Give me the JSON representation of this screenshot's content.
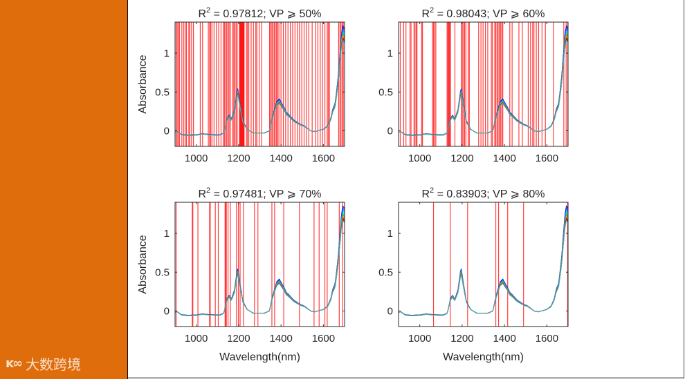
{
  "logo": {
    "mark": "ᴋ∞",
    "text": "大数跨境"
  },
  "colors": {
    "sidebar": "#e06d0c",
    "selection": "#ff0000",
    "series": [
      "#0000c8",
      "#0030ff",
      "#0080ff",
      "#00c0e0",
      "#20b0a0",
      "#40a040",
      "#c0c000",
      "#ff9000",
      "#ff3000",
      "#c00000",
      "#505050",
      "#40b8c8"
    ]
  },
  "chart_data": [
    {
      "type": "line",
      "title": "R² = 0.97812; VP ⩾ 50%",
      "title_parts": {
        "r": "R",
        "sup": "2",
        "rest": " = 0.97812; VP ⩾ 50%"
      },
      "xlabel": "",
      "ylabel": "Absorbance",
      "xlim": [
        900,
        1700
      ],
      "ylim": [
        -0.2,
        1.4
      ],
      "xticks": [
        "1000",
        "1200",
        "1400",
        "1600"
      ],
      "yticks": [
        "0",
        "0.5",
        "1"
      ],
      "selected_wavelengths": [
        905,
        910,
        916,
        921,
        932,
        941,
        948,
        954,
        965,
        970,
        978,
        987,
        1019,
        1030,
        1057,
        1063,
        1068,
        1074,
        1084,
        1095,
        1106,
        1117,
        1128,
        1133,
        1139,
        1144,
        1150,
        1155,
        1161,
        1172,
        1177,
        1182,
        1188,
        1193,
        1204,
        1206,
        1208,
        1210,
        1212,
        1214,
        1216,
        1218,
        1220,
        1222,
        1224,
        1226,
        1237,
        1242,
        1248,
        1259,
        1270,
        1281,
        1286,
        1297,
        1308,
        1346,
        1351,
        1357,
        1362,
        1368,
        1373,
        1379,
        1384,
        1390,
        1400,
        1411,
        1422,
        1433,
        1444,
        1455,
        1466,
        1477,
        1487,
        1498,
        1509,
        1520,
        1531,
        1547,
        1563,
        1574,
        1585,
        1596,
        1607,
        1618,
        1623,
        1629,
        1672,
        1678,
        1683,
        1689,
        1694
      ]
    },
    {
      "type": "line",
      "title": "R² = 0.98043; VP ⩾ 60%",
      "title_parts": {
        "r": "R",
        "sup": "2",
        "rest": " = 0.98043; VP ⩾ 60%"
      },
      "xlabel": "",
      "ylabel": "",
      "xlim": [
        900,
        1700
      ],
      "ylim": [
        -0.2,
        1.4
      ],
      "xticks": [
        "1000",
        "1200",
        "1400",
        "1600"
      ],
      "yticks": [
        "0",
        "0.5",
        "1"
      ],
      "selected_wavelengths": [
        908,
        924,
        935,
        954,
        959,
        973,
        978,
        984,
        987,
        1009,
        1013,
        1060,
        1065,
        1071,
        1076,
        1129,
        1133,
        1136,
        1139,
        1142,
        1145,
        1166,
        1196,
        1201,
        1207,
        1212,
        1218,
        1229,
        1234,
        1278,
        1289,
        1299,
        1310,
        1321,
        1338,
        1343,
        1354,
        1359,
        1365,
        1370,
        1376,
        1381,
        1387,
        1392,
        1425,
        1436,
        1468,
        1484,
        1512,
        1523,
        1533,
        1539,
        1550,
        1561,
        1577,
        1593,
        1631,
        1680,
        1691,
        1699
      ]
    },
    {
      "type": "line",
      "title": "R² = 0.97481; VP ⩾ 70%",
      "title_parts": {
        "r": "R",
        "sup": "2",
        "rest": " = 0.97481; VP ⩾ 70%"
      },
      "xlabel": "Wavelength(nm)",
      "ylabel": "Absorbance",
      "xlim": [
        900,
        1700
      ],
      "ylim": [
        -0.2,
        1.4
      ],
      "xticks": [
        "1000",
        "1200",
        "1400",
        "1600"
      ],
      "yticks": [
        "0",
        "0.5",
        "1"
      ],
      "selected_wavelengths": [
        905,
        981,
        984,
        1008,
        1063,
        1066,
        1090,
        1104,
        1136,
        1139,
        1142,
        1150,
        1161,
        1190,
        1199,
        1207,
        1223,
        1275,
        1291,
        1357,
        1370,
        1413,
        1487,
        1556,
        1580,
        1607,
        1618,
        1675,
        1691
      ]
    },
    {
      "type": "line",
      "title": "R² = 0.83903; VP ⩾ 80%",
      "title_parts": {
        "r": "R",
        "sup": "2",
        "rest": " = 0.83903; VP ⩾ 80%"
      },
      "xlabel": "Wavelength(nm)",
      "ylabel": "",
      "xlim": [
        900,
        1700
      ],
      "ylim": [
        -0.2,
        1.4
      ],
      "xticks": [
        "1000",
        "1200",
        "1400",
        "1600"
      ],
      "yticks": [
        "0",
        "0.5",
        "1"
      ],
      "selected_wavelengths": [
        1065,
        1144,
        1226,
        1359,
        1372,
        1415,
        1490,
        1698
      ]
    }
  ],
  "mean_spectrum": {
    "wavelength": [
      900,
      910,
      930,
      960,
      1000,
      1030,
      1060,
      1110,
      1130,
      1145,
      1155,
      1165,
      1180,
      1195,
      1205,
      1220,
      1240,
      1270,
      1320,
      1345,
      1360,
      1380,
      1392,
      1405,
      1415,
      1425,
      1435,
      1460,
      1490,
      1510,
      1540,
      1560,
      1600,
      1620,
      1635,
      1645,
      1655,
      1670,
      1685,
      1692,
      1700
    ],
    "absorbance": [
      -0.02,
      -0.01,
      -0.05,
      -0.06,
      -0.055,
      -0.04,
      -0.05,
      -0.055,
      -0.03,
      0.15,
      0.19,
      0.14,
      0.25,
      0.52,
      0.35,
      0.12,
      0.02,
      -0.03,
      -0.03,
      0.0,
      0.18,
      0.35,
      0.38,
      0.32,
      0.28,
      0.22,
      0.2,
      0.13,
      0.08,
      0.06,
      0.0,
      -0.01,
      0.02,
      0.06,
      0.15,
      0.27,
      0.32,
      0.65,
      1.15,
      1.25,
      1.22
    ]
  },
  "series_scales": [
    1.08,
    1.06,
    1.04,
    1.02,
    1.0,
    0.99,
    0.98,
    0.97,
    0.96,
    0.95,
    0.94,
    0.93
  ]
}
